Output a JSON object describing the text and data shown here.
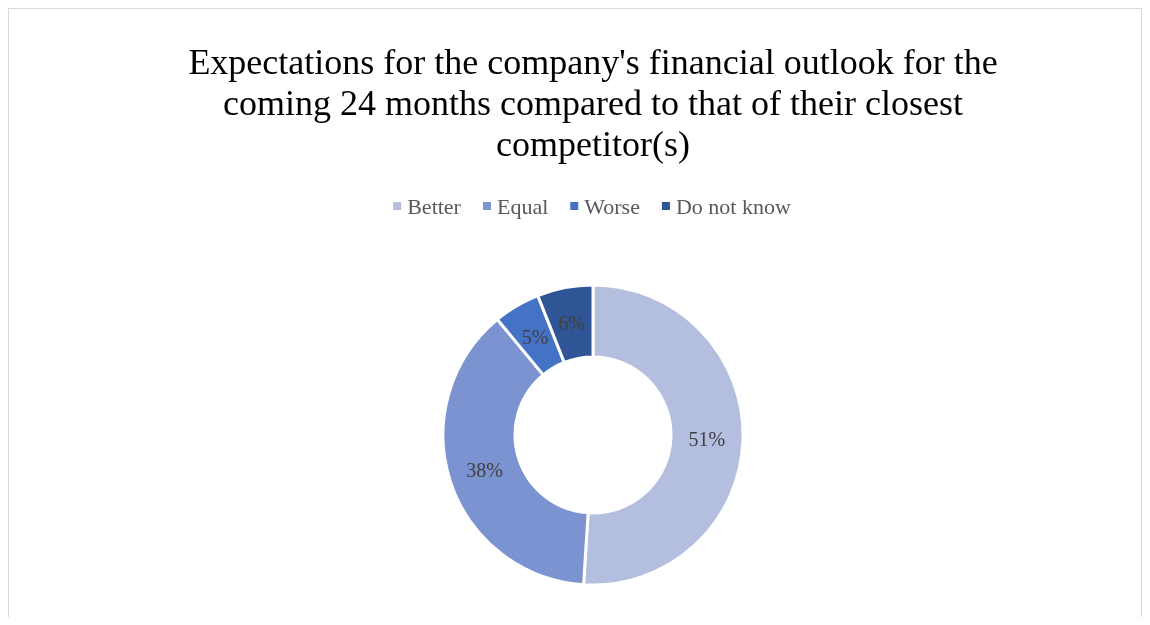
{
  "chart_data": {
    "type": "donut",
    "title": "Expectations for the company's financial outlook for the coming 24 months compared to that of their closest competitor(s)",
    "categories": [
      "Better",
      "Equal",
      "Worse",
      "Do not know"
    ],
    "values": [
      51,
      38,
      5,
      6
    ],
    "value_labels": [
      "51%",
      "38%",
      "5%",
      "6%"
    ],
    "colors": [
      "#b4bfe0",
      "#7b93d0",
      "#4472c4",
      "#2f5597"
    ],
    "legend": "top"
  }
}
